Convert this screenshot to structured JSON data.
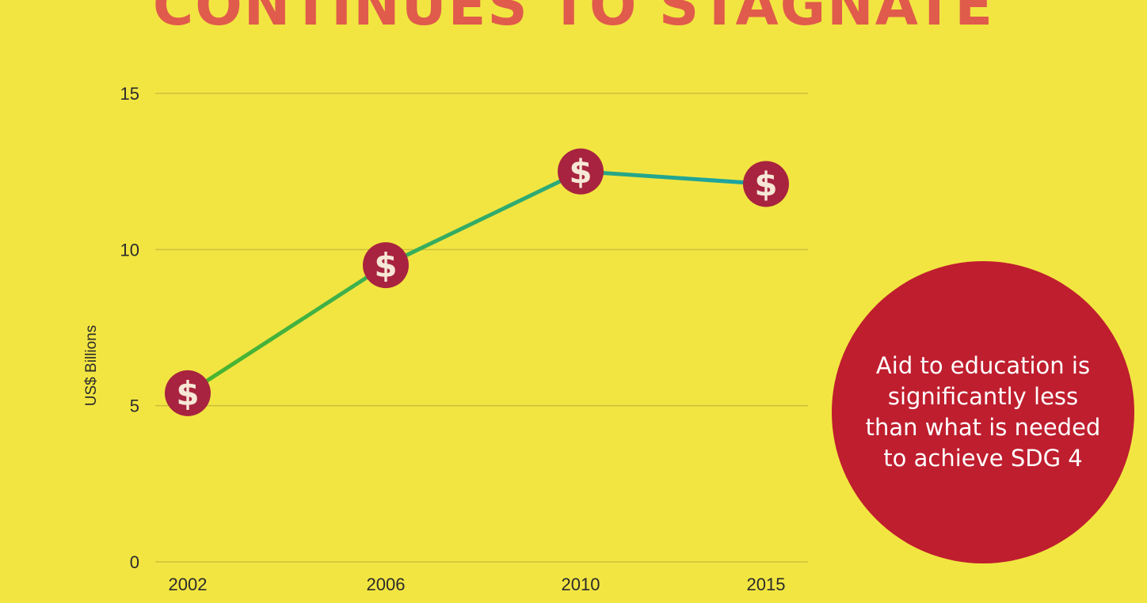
{
  "headline": "CONTINUES TO STAGNATE",
  "callout": {
    "text": "Aid to education is significantly less than what is needed to achieve SDG 4"
  },
  "colors": {
    "background": "#f2e541",
    "headline": "#e05b4b",
    "gridline": "#cdbf3a",
    "marker_fill": "#a8233f",
    "marker_symbol": "#f6e7d6",
    "callout_fill": "#bf1e2e",
    "line_start": "#4cb52a",
    "line_end": "#1aa2a6"
  },
  "marker_icon": "dollar-sign-icon",
  "chart_data": {
    "type": "line",
    "title": "",
    "xlabel": "",
    "ylabel": "US$ Billions",
    "categories": [
      "2002",
      "2006",
      "2010",
      "2015"
    ],
    "series": [
      {
        "values": [
          5.4,
          9.5,
          12.5,
          12.1
        ]
      }
    ],
    "ylim": [
      0,
      15
    ],
    "yticks": [
      0,
      5,
      10,
      15
    ],
    "marker_symbol": "$",
    "grid": true,
    "legend": "none"
  }
}
